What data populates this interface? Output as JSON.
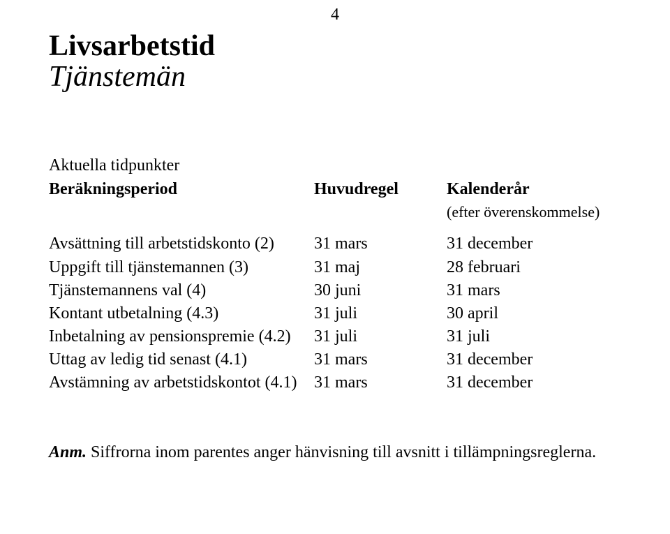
{
  "page_number": "4",
  "title_main": "Livsarbetstid",
  "title_sub": "Tjänstemän",
  "section_heading": "Aktuella tidpunkter",
  "table": {
    "headers": {
      "col1": "Beräkningsperiod",
      "col2": "Huvudregel",
      "col3": "Kalenderår",
      "col3_note": "(efter överenskommelse)"
    },
    "rows": [
      {
        "label": "Avsättning till arbetstidskonto (2)",
        "c2": "31 mars",
        "c3": "31 december"
      },
      {
        "label": "Uppgift till tjänstemannen (3)",
        "c2": "31 maj",
        "c3": "28 februari"
      },
      {
        "label": "Tjänstemannens val (4)",
        "c2": "30 juni",
        "c3": "31 mars"
      },
      {
        "label": "Kontant utbetalning (4.3)",
        "c2": "31 juli",
        "c3": "30 april"
      },
      {
        "label": "Inbetalning av pensionspremie (4.2)",
        "c2": "31 juli",
        "c3": "31 juli"
      },
      {
        "label": "Uttag av ledig tid senast (4.1)",
        "c2": "31 mars",
        "c3": "31 december"
      },
      {
        "label": "Avstämning av arbetstidskontot (4.1)",
        "c2": "31 mars",
        "c3": "31 december"
      }
    ]
  },
  "note": {
    "label": "Anm.",
    "text": " Siffrorna inom parentes anger hänvisning till avsnitt i tillämpningsreglerna."
  }
}
